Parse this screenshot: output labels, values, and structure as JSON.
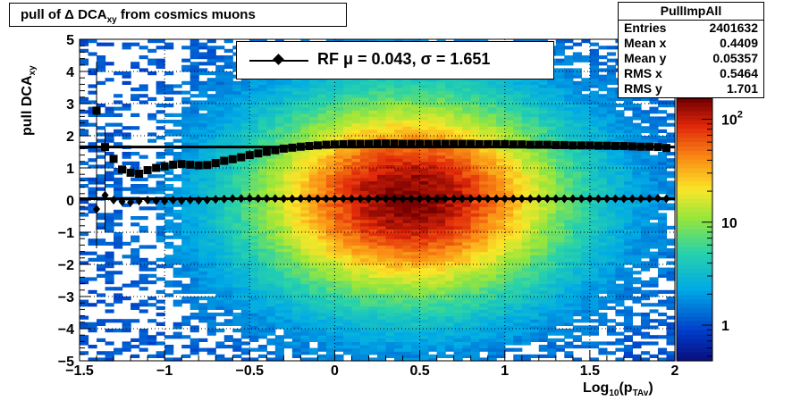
{
  "title": {
    "prefix": "pull of",
    "delta": "Δ",
    "mid": " DCA",
    "sub": "xy",
    "suffix": "  from cosmics muons"
  },
  "stats": {
    "name": "PullImpAll",
    "rows": [
      {
        "label": "Entries",
        "value": "2401632"
      },
      {
        "label": "Mean x",
        "value": "0.4409"
      },
      {
        "label": "Mean y",
        "value": "0.05357"
      },
      {
        "label": "RMS x",
        "value": "0.5464"
      },
      {
        "label": "RMS y",
        "value": "1.701"
      }
    ]
  },
  "legend": {
    "text": "RF μ =  0.043, σ =   1.651"
  },
  "chart_data": {
    "type": "heatmap",
    "title": "pull of Δ DCA_xy  from cosmics muons",
    "xlabel": "Log10(pTAv)",
    "ylabel": "pull DCA_xy",
    "xlim": [
      -1.5,
      2
    ],
    "ylim": [
      -5,
      5
    ],
    "x_ticks": [
      "−1.5",
      "−1",
      "−0.5",
      "0",
      "0.5",
      "1",
      "1.5",
      "2"
    ],
    "y_ticks": [
      "−5",
      "−4",
      "−3",
      "−2",
      "−1",
      "0",
      "1",
      "2",
      "3",
      "4",
      "5"
    ],
    "color_scale": "log",
    "z_ticks": [
      "1",
      "10",
      "10^2"
    ],
    "grid": true,
    "legend_position": "top",
    "mean_series": {
      "name": "RF",
      "x": [
        -1.4,
        -1.35,
        -1.3,
        -1.25,
        -1.2,
        -1.15,
        -1.1,
        -1.05,
        -1.0,
        -0.95,
        -0.9,
        -0.85,
        -0.8,
        -0.75,
        -0.7,
        -0.65,
        -0.6,
        -0.55,
        -0.5,
        -0.45,
        -0.4,
        -0.35,
        -0.3,
        -0.25,
        -0.2,
        -0.15,
        -0.1,
        -0.05,
        0.0,
        0.05,
        0.1,
        0.15,
        0.2,
        0.25,
        0.3,
        0.35,
        0.4,
        0.45,
        0.5,
        0.55,
        0.6,
        0.65,
        0.7,
        0.75,
        0.8,
        0.85,
        0.9,
        0.95,
        1.0,
        1.05,
        1.1,
        1.15,
        1.2,
        1.25,
        1.3,
        1.35,
        1.4,
        1.45,
        1.5,
        1.55,
        1.6,
        1.65,
        1.7,
        1.75,
        1.8,
        1.85,
        1.9,
        1.95
      ],
      "y": [
        -0.28,
        0.15,
        0.0,
        -0.05,
        -0.07,
        -0.03,
        0.0,
        -0.02,
        -0.03,
        0.0,
        -0.02,
        0.0,
        -0.01,
        0.0,
        0.02,
        0.03,
        0.05,
        0.05,
        0.06,
        0.05,
        0.05,
        0.05,
        0.04,
        0.04,
        0.05,
        0.05,
        0.04,
        0.04,
        0.04,
        0.04,
        0.04,
        0.04,
        0.04,
        0.04,
        0.04,
        0.04,
        0.04,
        0.04,
        0.04,
        0.04,
        0.04,
        0.04,
        0.04,
        0.04,
        0.04,
        0.04,
        0.04,
        0.04,
        0.04,
        0.04,
        0.04,
        0.04,
        0.04,
        0.04,
        0.04,
        0.04,
        0.04,
        0.04,
        0.04,
        0.04,
        0.04,
        0.04,
        0.04,
        0.04,
        0.04,
        0.05,
        0.06,
        0.04
      ]
    },
    "sigma_series": {
      "x": [
        -1.4,
        -1.35,
        -1.3,
        -1.25,
        -1.2,
        -1.15,
        -1.1,
        -1.05,
        -1.0,
        -0.95,
        -0.9,
        -0.85,
        -0.8,
        -0.75,
        -0.7,
        -0.65,
        -0.6,
        -0.55,
        -0.5,
        -0.45,
        -0.4,
        -0.35,
        -0.3,
        -0.25,
        -0.2,
        -0.15,
        -0.1,
        -0.05,
        0.0,
        0.05,
        0.1,
        0.15,
        0.2,
        0.25,
        0.3,
        0.35,
        0.4,
        0.45,
        0.5,
        0.55,
        0.6,
        0.65,
        0.7,
        0.75,
        0.8,
        0.85,
        0.9,
        0.95,
        1.0,
        1.05,
        1.1,
        1.15,
        1.2,
        1.25,
        1.3,
        1.35,
        1.4,
        1.45,
        1.5,
        1.55,
        1.6,
        1.65,
        1.7,
        1.75,
        1.8,
        1.85,
        1.9,
        1.95
      ],
      "y": [
        2.78,
        1.65,
        1.28,
        0.95,
        0.85,
        0.82,
        0.93,
        1.0,
        1.05,
        1.1,
        1.12,
        1.1,
        1.08,
        1.09,
        1.15,
        1.22,
        1.27,
        1.33,
        1.4,
        1.45,
        1.5,
        1.55,
        1.6,
        1.63,
        1.66,
        1.68,
        1.7,
        1.72,
        1.73,
        1.74,
        1.75,
        1.75,
        1.75,
        1.76,
        1.76,
        1.76,
        1.75,
        1.75,
        1.75,
        1.75,
        1.75,
        1.75,
        1.75,
        1.75,
        1.75,
        1.74,
        1.74,
        1.74,
        1.74,
        1.73,
        1.73,
        1.72,
        1.72,
        1.72,
        1.71,
        1.71,
        1.7,
        1.7,
        1.7,
        1.69,
        1.69,
        1.68,
        1.68,
        1.67,
        1.66,
        1.66,
        1.65,
        1.62
      ]
    },
    "reference_line_y": 1.651,
    "mean_line_y": 0.043,
    "distribution": {
      "peak_x": 0.4409,
      "peak_y": 0.05357,
      "rms_x": 0.5464,
      "rms_y": 1.701
    }
  },
  "xaxis_label": {
    "base": "Log",
    "sub1": "10",
    "open": "(p",
    "sub2": "TAv",
    "close": ")"
  },
  "yaxis_label": {
    "base": "pull DCA",
    "sub": "xy"
  },
  "colors": {
    "frame": "#000000",
    "marker": "#000000"
  }
}
